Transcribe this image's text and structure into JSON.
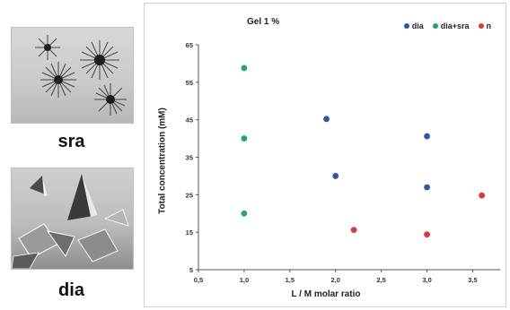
{
  "photos": {
    "sra": {
      "caption": "sra"
    },
    "dia": {
      "caption": "dia"
    }
  },
  "chart_data": {
    "type": "scatter",
    "title": "Gel 1 %",
    "xlabel": "L / M molar ratio",
    "ylabel": "Total concentration (mM)",
    "xlim": [
      0.5,
      3.8
    ],
    "ylim": [
      5,
      65
    ],
    "xticks": [
      0.5,
      1.0,
      1.5,
      2.0,
      2.5,
      3.0,
      3.5
    ],
    "xtick_labels": [
      "0,5",
      "1,0",
      "1,5",
      "2,0",
      "2,5",
      "3,0",
      "3,5"
    ],
    "yticks": [
      5,
      15,
      25,
      35,
      45,
      55,
      65
    ],
    "ytick_labels": [
      "5",
      "15",
      "25",
      "35",
      "45",
      "55",
      "65"
    ],
    "grid": false,
    "legend_position": "top-right",
    "series": [
      {
        "name": "dia",
        "color": "#2e57a4",
        "points": [
          [
            1.9,
            45.2
          ],
          [
            2.0,
            30.0
          ],
          [
            3.0,
            40.6
          ],
          [
            3.0,
            27.0
          ]
        ]
      },
      {
        "name": "dia+sra",
        "color": "#25a867",
        "points": [
          [
            1.0,
            58.8
          ],
          [
            1.0,
            40.0
          ],
          [
            1.0,
            20.0
          ]
        ]
      },
      {
        "name": "n",
        "color": "#d93a3a",
        "points": [
          [
            2.2,
            15.6
          ],
          [
            3.0,
            14.4
          ],
          [
            3.6,
            24.8
          ]
        ]
      }
    ]
  }
}
